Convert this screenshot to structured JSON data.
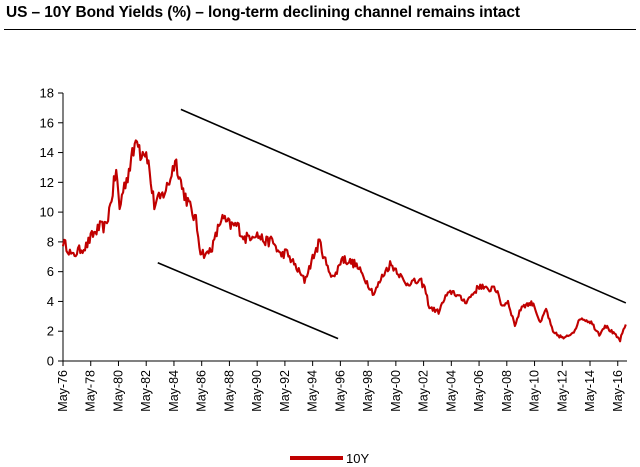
{
  "chart_data": {
    "type": "line",
    "title": "US – 10Y Bond Yields (%) – long-term declining channel remains intact",
    "xlabel": "",
    "ylabel": "",
    "ylim": [
      0,
      18
    ],
    "yticks": [
      "0",
      "2",
      "4",
      "6",
      "8",
      "10",
      "12",
      "14",
      "16",
      "18"
    ],
    "x_tick_labels": [
      "May-76",
      "May-78",
      "May-80",
      "May-82",
      "May-84",
      "May-86",
      "May-88",
      "May-90",
      "May-92",
      "May-94",
      "May-96",
      "May-98",
      "May-00",
      "May-02",
      "May-04",
      "May-06",
      "May-08",
      "May-10",
      "May-12",
      "May-14",
      "May-16"
    ],
    "xlim": [
      "1976-05",
      "2017-01"
    ],
    "legend_position": "bottom-center",
    "grid": false,
    "series": [
      {
        "name": "10Y",
        "color": "#c00000",
        "x": [
          "1976-05",
          "1976-09",
          "1977-01",
          "1977-06",
          "1978-01",
          "1978-06",
          "1979-01",
          "1979-06",
          "1979-10",
          "1980-03",
          "1980-06",
          "1980-09",
          "1981-01",
          "1981-04",
          "1981-06",
          "1981-09",
          "1981-12",
          "1982-03",
          "1982-06",
          "1982-09",
          "1982-12",
          "1983-06",
          "1983-12",
          "1984-06",
          "1984-09",
          "1984-12",
          "1985-06",
          "1985-12",
          "1986-04",
          "1986-09",
          "1987-03",
          "1987-06",
          "1987-10",
          "1988-06",
          "1988-12",
          "1989-06",
          "1990-03",
          "1990-06",
          "1991-01",
          "1991-06",
          "1992-01",
          "1992-06",
          "1993-01",
          "1993-10",
          "1994-06",
          "1994-11",
          "1995-06",
          "1995-12",
          "1996-06",
          "1997-06",
          "1998-01",
          "1998-10",
          "1999-06",
          "1999-12",
          "2000-06",
          "2001-01",
          "2001-06",
          "2002-03",
          "2002-06",
          "2002-10",
          "2003-06",
          "2003-12",
          "2004-06",
          "2005-01",
          "2005-06",
          "2006-06",
          "2007-01",
          "2007-06",
          "2008-01",
          "2008-06",
          "2008-12",
          "2009-06",
          "2010-04",
          "2010-10",
          "2011-03",
          "2011-09",
          "2012-07",
          "2013-03",
          "2013-09",
          "2014-06",
          "2015-01",
          "2015-06",
          "2016-07",
          "2016-12"
        ],
        "values": [
          8.0,
          7.6,
          7.0,
          7.4,
          7.7,
          8.4,
          9.0,
          9.0,
          10.5,
          12.8,
          10.2,
          11.5,
          12.5,
          13.5,
          14.0,
          15.3,
          14.0,
          14.2,
          13.8,
          12.0,
          10.5,
          11.0,
          11.8,
          13.5,
          12.8,
          11.6,
          10.5,
          9.4,
          7.4,
          7.1,
          7.8,
          8.6,
          9.6,
          9.1,
          9.1,
          8.2,
          8.6,
          8.4,
          8.0,
          8.1,
          7.1,
          7.3,
          6.5,
          5.4,
          7.1,
          8.0,
          6.2,
          5.6,
          6.9,
          6.5,
          5.7,
          4.5,
          5.8,
          6.5,
          6.1,
          5.2,
          5.3,
          5.3,
          4.9,
          3.6,
          3.3,
          4.3,
          4.7,
          4.2,
          4.0,
          5.1,
          4.7,
          5.1,
          3.7,
          4.0,
          2.4,
          3.7,
          3.9,
          2.5,
          3.5,
          1.9,
          1.5,
          2.0,
          2.9,
          2.6,
          1.8,
          2.4,
          1.4,
          2.45
        ]
      }
    ],
    "trendlines": [
      {
        "x": [
          "1984-11",
          "2016-12"
        ],
        "values": [
          16.9,
          3.9
        ]
      },
      {
        "x": [
          "1983-03",
          "1996-03"
        ],
        "values": [
          6.6,
          1.5
        ]
      }
    ]
  },
  "legend": {
    "label": "10Y"
  }
}
